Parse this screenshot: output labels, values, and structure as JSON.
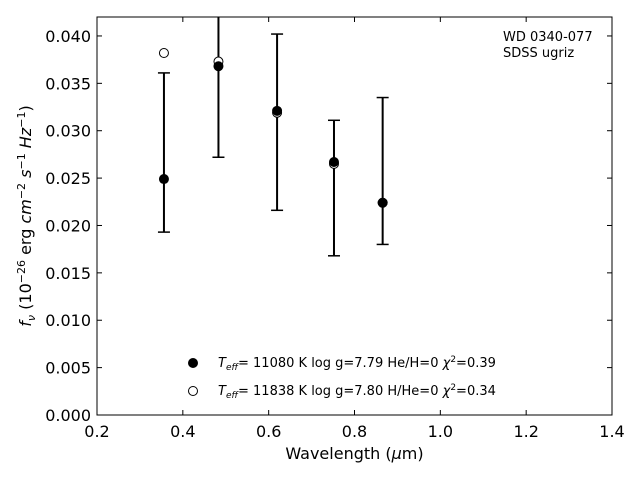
{
  "chart_data": {
    "type": "scatter",
    "title": "",
    "xlabel": "Wavelength (μm)",
    "ylabel": "f_ν (10^-26 erg cm^-2 s^-1 Hz^-1)",
    "xlim": [
      0.2,
      1.4
    ],
    "ylim": [
      0.0,
      0.042
    ],
    "x_ticks": [
      0.2,
      0.4,
      0.6,
      0.8,
      1.0,
      1.2,
      1.4
    ],
    "x_tick_labels": [
      "0.2",
      "0.4",
      "0.6",
      "0.8",
      "1.0",
      "1.2",
      "1.4"
    ],
    "y_ticks": [
      0.0,
      0.005,
      0.01,
      0.015,
      0.02,
      0.025,
      0.03,
      0.035,
      0.04
    ],
    "y_tick_labels": [
      "0.000",
      "0.005",
      "0.010",
      "0.015",
      "0.020",
      "0.025",
      "0.030",
      "0.035",
      "0.040"
    ],
    "grid": false,
    "legend_position": "bottom-center",
    "annotation": [
      "WD 0340-077",
      "SDSS ugriz"
    ],
    "observed": {
      "x": [
        0.356,
        0.483,
        0.6196,
        0.7522,
        0.8656
      ],
      "y": [
        0.0249,
        0.0368,
        0.032,
        0.0267,
        0.0224
      ],
      "yerr_low": [
        0.0193,
        0.0272,
        0.0216,
        0.0168,
        0.018
      ],
      "yerr_high": [
        0.0361,
        0.0425,
        0.0402,
        0.0311,
        0.0335
      ]
    },
    "series": [
      {
        "name": "T_eff= 11080 K  log g=7.79  He/H=0  χ²=0.39",
        "marker": "filled-circle",
        "x": [
          0.356,
          0.483,
          0.6196,
          0.7522,
          0.8656
        ],
        "y": [
          0.0249,
          0.0368,
          0.0321,
          0.0267,
          0.0224
        ]
      },
      {
        "name": "T_eff= 11838 K  log g=7.80  H/He=0  χ²=0.34",
        "marker": "open-circle",
        "x": [
          0.356,
          0.483,
          0.6196,
          0.7522,
          0.8656
        ],
        "y": [
          0.0382,
          0.0373,
          0.0319,
          0.0265,
          0.0224
        ]
      }
    ],
    "legend": {
      "entry1": {
        "teff": "11080 K",
        "logg": "log g=7.79",
        "comp": "He/H=0",
        "chi": "=0.39"
      },
      "entry2": {
        "teff": "11838 K",
        "logg": "log g=7.80",
        "comp": "H/He=0",
        "chi": "=0.34"
      }
    },
    "colors": {
      "marker": "#000000",
      "errorbar": "#000000",
      "axes": "#000000"
    }
  }
}
